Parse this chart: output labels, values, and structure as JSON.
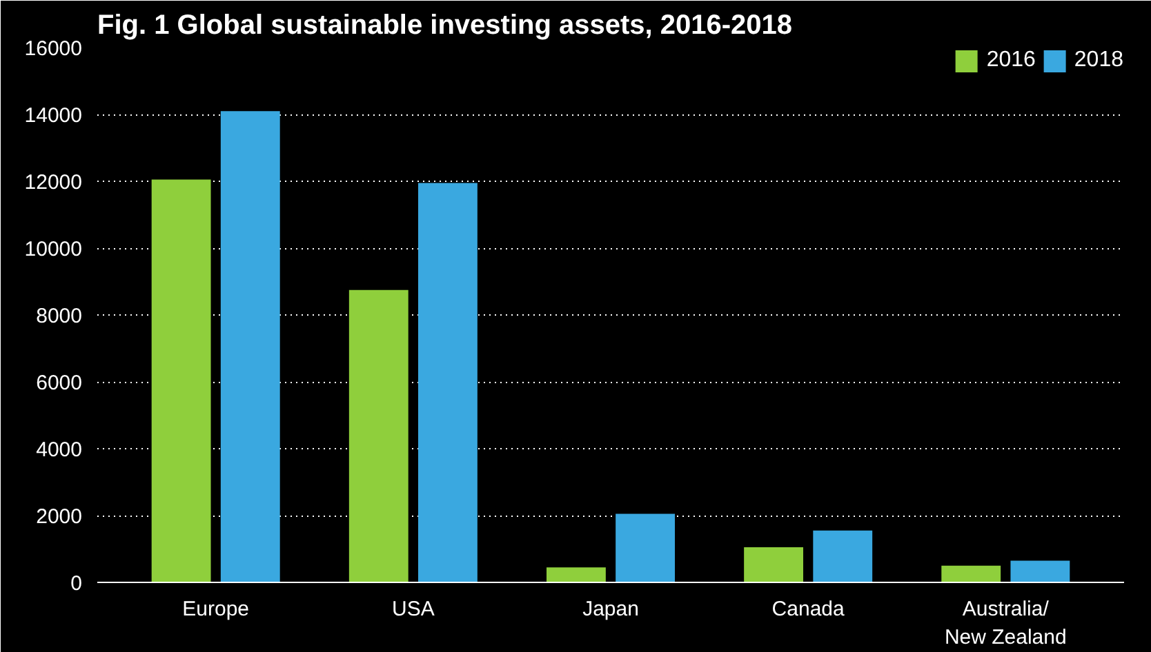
{
  "chart_data": {
    "type": "bar",
    "title": "Fig. 1 Global sustainable investing assets, 2016-2018",
    "categories": [
      "Europe",
      "USA",
      "Japan",
      "Canada",
      "Australia/\nNew Zealand"
    ],
    "series": [
      {
        "name": "2016",
        "color": "#8fcf3c",
        "values": [
          12050,
          8750,
          450,
          1050,
          500
        ]
      },
      {
        "name": "2018",
        "color": "#3aa8e0",
        "values": [
          14100,
          11950,
          2050,
          1550,
          650
        ]
      }
    ],
    "ylim": [
      0,
      16000
    ],
    "yticks": [
      0,
      2000,
      4000,
      6000,
      8000,
      10000,
      12000,
      14000,
      16000
    ],
    "grid": "y",
    "legend": "top right"
  }
}
